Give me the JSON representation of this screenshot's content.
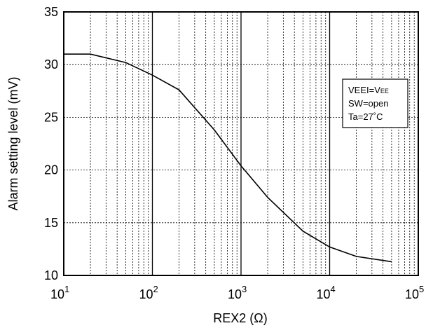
{
  "chart_data": {
    "type": "line",
    "xlabel": "REX2 (Ω)",
    "ylabel": "Alarm setting level (mV)",
    "x_scale": "log",
    "xlim": [
      10,
      100000
    ],
    "ylim": [
      10,
      35
    ],
    "grid": true,
    "x_ticks": [
      {
        "base": "10",
        "exp": "1",
        "value": 10
      },
      {
        "base": "10",
        "exp": "2",
        "value": 100
      },
      {
        "base": "10",
        "exp": "3",
        "value": 1000
      },
      {
        "base": "10",
        "exp": "4",
        "value": 10000
      },
      {
        "base": "10",
        "exp": "5",
        "value": 100000
      }
    ],
    "y_ticks": [
      "10",
      "15",
      "20",
      "25",
      "30",
      "35"
    ],
    "series": [
      {
        "x": [
          10,
          20,
          50,
          100,
          200,
          500,
          1000,
          2000,
          5000,
          10000,
          20000,
          50000
        ],
        "y": [
          31.0,
          31.0,
          30.2,
          29.0,
          27.6,
          23.8,
          20.4,
          17.4,
          14.2,
          12.7,
          11.8,
          11.3
        ]
      }
    ],
    "annotation": {
      "lines": [
        {
          "pre": "VEEI=V",
          "sub": "EE"
        },
        {
          "pre": "SW=open",
          "sub": ""
        },
        {
          "pre": "Ta=27˚C",
          "sub": ""
        }
      ]
    }
  }
}
